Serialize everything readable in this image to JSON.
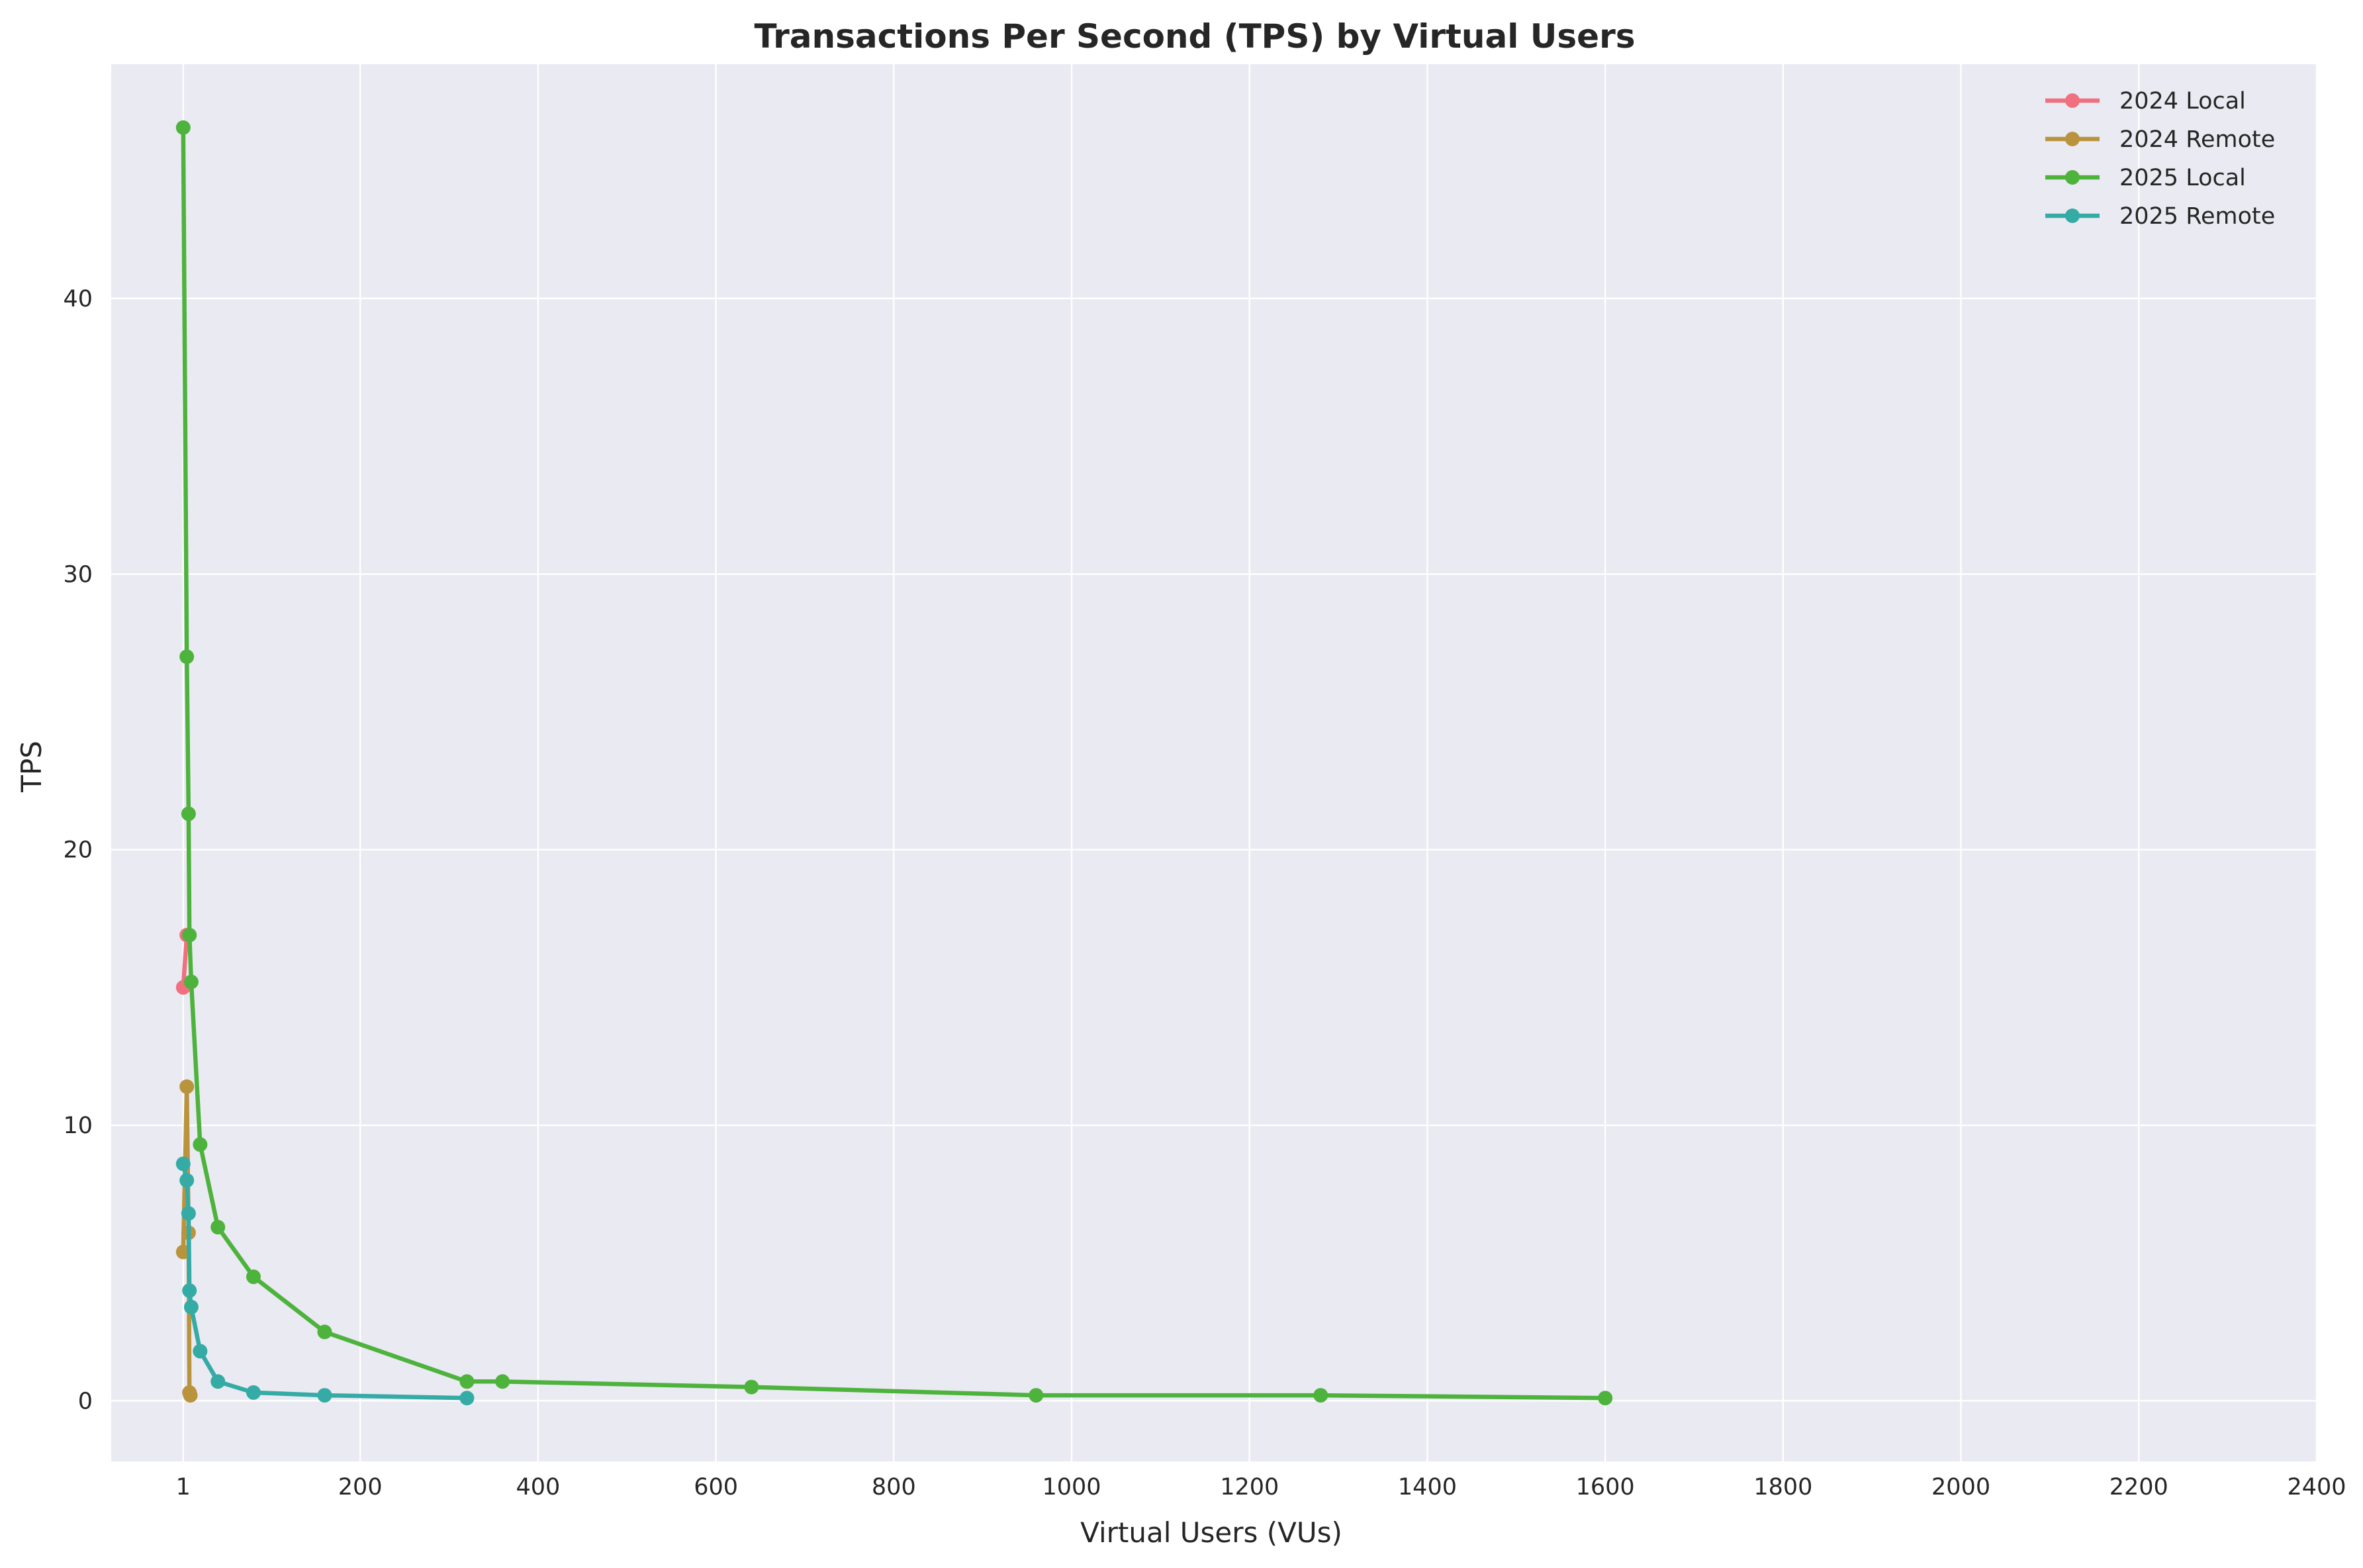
{
  "chart_data": {
    "type": "line",
    "title": "Transactions Per Second (TPS) by Virtual Users",
    "xlabel": "Virtual Users (VUs)",
    "ylabel": "TPS",
    "xlim": [
      -80,
      2400
    ],
    "ylim": [
      -2.2,
      48.5
    ],
    "xticks": [
      1,
      200,
      400,
      600,
      800,
      1000,
      1200,
      1400,
      1600,
      1800,
      2000,
      2200,
      2400
    ],
    "yticks": [
      0,
      10,
      20,
      30,
      40
    ],
    "grid": true,
    "legend_position": "top-right",
    "series": [
      {
        "name": "2024 Local",
        "color": "#f0707f",
        "x": [
          1,
          5
        ],
        "y": [
          15.0,
          16.9
        ]
      },
      {
        "name": "2024 Remote",
        "color": "#b9943d",
        "x": [
          1,
          5,
          7,
          8,
          9
        ],
        "y": [
          5.4,
          11.4,
          6.1,
          0.3,
          0.2
        ]
      },
      {
        "name": "2025 Local",
        "color": "#4db33d",
        "x": [
          1,
          5,
          7,
          8,
          10,
          20,
          40,
          80,
          160,
          320,
          360,
          640,
          960,
          1280,
          1600
        ],
        "y": [
          46.2,
          27.0,
          21.3,
          16.9,
          15.2,
          9.3,
          6.3,
          4.5,
          2.5,
          0.7,
          0.7,
          0.5,
          0.2,
          0.2,
          0.1
        ]
      },
      {
        "name": "2025 Remote",
        "color": "#35aba6",
        "x": [
          1,
          5,
          7,
          8,
          10,
          20,
          40,
          80,
          160,
          320
        ],
        "y": [
          8.6,
          8.0,
          6.8,
          4.0,
          3.4,
          1.8,
          0.7,
          0.3,
          0.2,
          0.1
        ]
      }
    ]
  }
}
